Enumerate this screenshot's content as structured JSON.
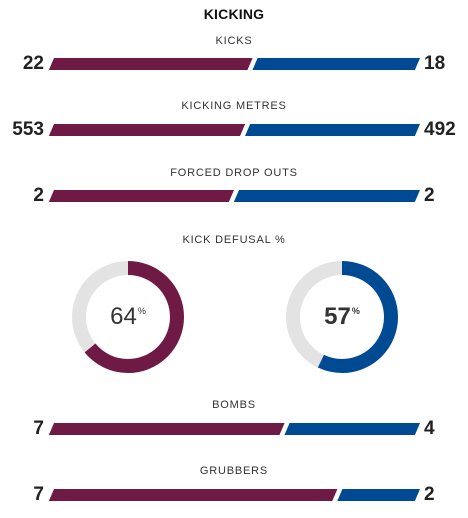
{
  "section": {
    "title": "KICKING"
  },
  "colors": {
    "home": "#6e1a44",
    "away": "#004a93",
    "track": "#e3e3e3"
  },
  "stats": [
    {
      "label": "KICKS",
      "home": "22",
      "away": "18",
      "home_share": 0.55
    },
    {
      "label": "KICKING METRES",
      "home": "553",
      "away": "492",
      "home_share": 0.53
    },
    {
      "label": "FORCED DROP OUTS",
      "home": "2",
      "away": "2",
      "home_share": 0.5
    }
  ],
  "defusal": {
    "label": "KICK DEFUSAL %",
    "home": {
      "value": "64",
      "unit": "%",
      "fraction": 0.64
    },
    "away": {
      "value": "57",
      "unit": "%",
      "fraction": 0.57
    }
  },
  "stats_bottom": [
    {
      "label": "BOMBS",
      "home": "7",
      "away": "4",
      "home_share": 0.636
    },
    {
      "label": "GRUBBERS",
      "home": "7",
      "away": "2",
      "home_share": 0.778
    }
  ]
}
